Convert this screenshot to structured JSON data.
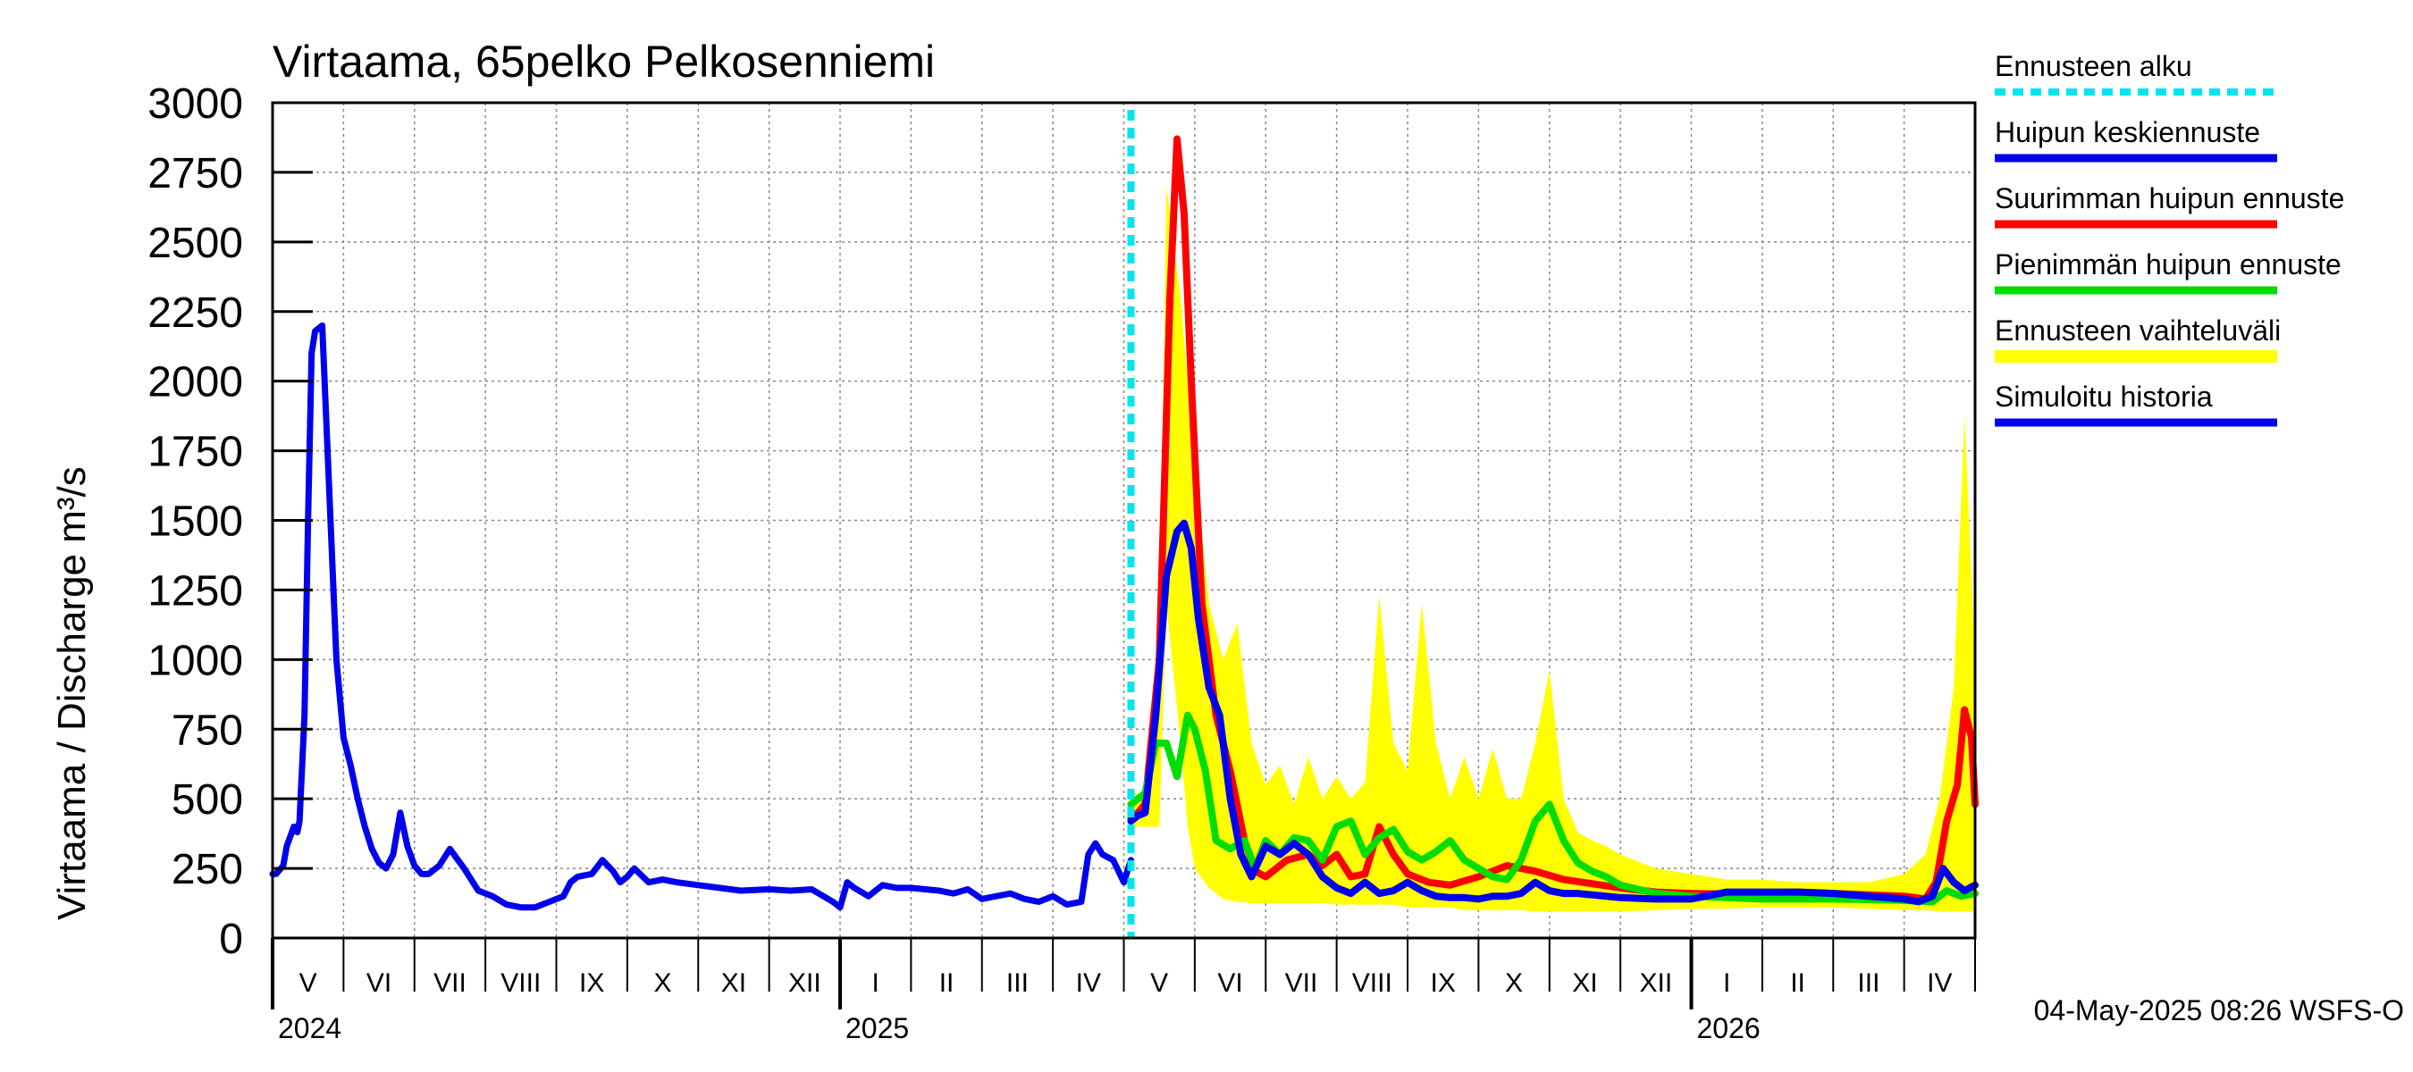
{
  "chart_data": {
    "type": "line",
    "title": "Virtaama, 65pelko Pelkosenniemi",
    "ylabel": "Virtaama / Discharge    m³/s",
    "y_ticks": [
      "3000",
      "2750",
      "2500",
      "2250",
      "2000",
      "1750",
      "1500",
      "1250",
      "1000",
      "750",
      "500",
      "250",
      "0"
    ],
    "ylim": [
      0,
      3000
    ],
    "x_unit": "months since 2024-05-01",
    "xlim": [
      0,
      24.0
    ],
    "forecast_start": 12.1,
    "month_labels": [
      "V",
      "VI",
      "VII",
      "VIII",
      "IX",
      "X",
      "XI",
      "XII",
      "I",
      "II",
      "III",
      "IV",
      "V",
      "VI",
      "VII",
      "VIII",
      "IX",
      "X",
      "XI",
      "XII",
      "I",
      "II",
      "III",
      "IV"
    ],
    "year_labels": [
      "2024",
      "2025",
      "2026"
    ],
    "legend": [
      {
        "label": "Ennusteen alku",
        "color": "#00e5ee",
        "style": "dashed"
      },
      {
        "label": "Huipun keskiennuste",
        "color": "#0000ee",
        "style": "solid"
      },
      {
        "label": "Suurimman huipun ennuste",
        "color": "#ff0000",
        "style": "solid"
      },
      {
        "label": "Pienimmän huipun ennuste",
        "color": "#00dd00",
        "style": "solid"
      },
      {
        "label": "Ennusteen vaihteluväli",
        "color": "#ffff00",
        "style": "band"
      },
      {
        "label": "Simuloitu historia",
        "color": "#0000ee",
        "style": "solid"
      }
    ],
    "footer": "04-May-2025 08:26 WSFS-O",
    "range_band": {
      "name": "Ennusteen vaihteluväli",
      "x": [
        12.1,
        12.3,
        12.5,
        12.6,
        12.8,
        12.9,
        13.0,
        13.2,
        13.4,
        13.6,
        13.8,
        14.0,
        14.2,
        14.4,
        14.6,
        14.8,
        15.0,
        15.2,
        15.4,
        15.6,
        15.8,
        16.0,
        16.2,
        16.4,
        16.6,
        16.8,
        17.0,
        17.2,
        17.4,
        17.6,
        17.8,
        18.0,
        18.2,
        18.4,
        18.6,
        18.8,
        19.0,
        19.5,
        20.0,
        20.5,
        21.0,
        21.5,
        22.0,
        22.5,
        23.0,
        23.3,
        23.5,
        23.7,
        23.85,
        24.0
      ],
      "upper": [
        520,
        520,
        1000,
        2700,
        2300,
        2000,
        1700,
        1200,
        1000,
        1130,
        700,
        550,
        620,
        480,
        650,
        500,
        580,
        500,
        560,
        1230,
        700,
        600,
        1200,
        700,
        500,
        650,
        500,
        680,
        500,
        500,
        700,
        960,
        500,
        380,
        350,
        330,
        300,
        250,
        230,
        210,
        210,
        200,
        200,
        200,
        230,
        300,
        500,
        900,
        1880,
        1000
      ],
      "lower": [
        400,
        400,
        400,
        1200,
        700,
        400,
        250,
        180,
        140,
        130,
        125,
        125,
        125,
        125,
        125,
        125,
        120,
        120,
        120,
        120,
        120,
        110,
        110,
        110,
        110,
        100,
        100,
        100,
        100,
        100,
        95,
        95,
        95,
        95,
        95,
        95,
        95,
        100,
        105,
        105,
        110,
        110,
        110,
        105,
        100,
        100,
        95,
        95,
        95,
        95
      ]
    },
    "series": [
      {
        "name": "Simuloitu historia",
        "color": "#0000ee",
        "x": [
          0.0,
          0.05,
          0.15,
          0.2,
          0.3,
          0.35,
          0.38,
          0.45,
          0.5,
          0.55,
          0.6,
          0.7,
          0.8,
          0.9,
          1.0,
          1.1,
          1.2,
          1.3,
          1.4,
          1.5,
          1.6,
          1.7,
          1.8,
          1.9,
          2.0,
          2.1,
          2.2,
          2.35,
          2.5,
          2.7,
          2.9,
          3.1,
          3.3,
          3.5,
          3.7,
          3.9,
          4.1,
          4.2,
          4.3,
          4.5,
          4.65,
          4.8,
          4.9,
          5.0,
          5.1,
          5.3,
          5.5,
          5.7,
          6.0,
          6.3,
          6.6,
          7.0,
          7.3,
          7.6,
          7.9,
          8.0,
          8.1,
          8.2,
          8.4,
          8.6,
          8.8,
          9.0,
          9.2,
          9.4,
          9.6,
          9.8,
          10.0,
          10.2,
          10.4,
          10.6,
          10.8,
          11.0,
          11.2,
          11.4,
          11.5,
          11.6,
          11.7,
          11.85,
          12.0,
          12.1
        ],
        "y": [
          230,
          230,
          260,
          330,
          400,
          380,
          420,
          800,
          1500,
          2100,
          2180,
          2200,
          1600,
          1000,
          720,
          620,
          500,
          400,
          320,
          270,
          250,
          300,
          450,
          330,
          260,
          230,
          230,
          260,
          320,
          250,
          170,
          150,
          120,
          110,
          110,
          130,
          150,
          200,
          220,
          230,
          280,
          240,
          200,
          220,
          250,
          200,
          210,
          200,
          190,
          180,
          170,
          175,
          170,
          175,
          130,
          110,
          200,
          180,
          150,
          190,
          180,
          180,
          175,
          170,
          160,
          175,
          140,
          150,
          160,
          140,
          130,
          150,
          120,
          130,
          300,
          340,
          300,
          280,
          200,
          280
        ]
      },
      {
        "name": "Suurimman huipun ennuste",
        "color": "#ff0000",
        "x": [
          12.1,
          12.2,
          12.3,
          12.5,
          12.65,
          12.75,
          12.85,
          12.95,
          13.1,
          13.3,
          13.5,
          13.7,
          13.85,
          14.0,
          14.3,
          14.6,
          14.8,
          15.0,
          15.2,
          15.4,
          15.6,
          15.8,
          16.0,
          16.3,
          16.6,
          17.0,
          17.4,
          17.8,
          18.2,
          18.6,
          19.0,
          19.5,
          20.0,
          20.5,
          21.0,
          21.5,
          22.0,
          22.5,
          23.0,
          23.3,
          23.45,
          23.6,
          23.75,
          23.85,
          23.95,
          24.0
        ],
        "y": [
          430,
          450,
          480,
          1000,
          2300,
          2870,
          2600,
          2000,
          1200,
          800,
          600,
          350,
          240,
          220,
          280,
          300,
          260,
          300,
          220,
          230,
          400,
          300,
          230,
          200,
          190,
          220,
          260,
          240,
          210,
          195,
          180,
          165,
          160,
          158,
          160,
          165,
          160,
          155,
          150,
          140,
          200,
          420,
          550,
          820,
          720,
          480
        ]
      },
      {
        "name": "Pienimmän huipun ennuste",
        "color": "#00dd00",
        "x": [
          12.1,
          12.3,
          12.45,
          12.6,
          12.75,
          12.9,
          13.0,
          13.15,
          13.3,
          13.5,
          13.7,
          13.85,
          14.0,
          14.2,
          14.4,
          14.6,
          14.8,
          15.0,
          15.2,
          15.4,
          15.6,
          15.8,
          16.0,
          16.2,
          16.4,
          16.6,
          16.8,
          17.0,
          17.2,
          17.4,
          17.6,
          17.8,
          18.0,
          18.2,
          18.4,
          18.6,
          18.8,
          19.0,
          19.5,
          20.0,
          20.5,
          21.0,
          21.5,
          22.0,
          22.5,
          23.0,
          23.4,
          23.6,
          23.8,
          24.0
        ],
        "y": [
          480,
          520,
          700,
          700,
          580,
          800,
          750,
          600,
          350,
          320,
          350,
          250,
          350,
          300,
          360,
          350,
          280,
          400,
          420,
          300,
          360,
          390,
          310,
          280,
          310,
          350,
          280,
          250,
          220,
          210,
          280,
          420,
          480,
          350,
          270,
          240,
          220,
          190,
          160,
          150,
          145,
          140,
          140,
          140,
          138,
          135,
          130,
          170,
          150,
          160
        ]
      },
      {
        "name": "Huipun keskiennuste",
        "color": "#0000ee",
        "x": [
          12.1,
          12.2,
          12.3,
          12.45,
          12.6,
          12.75,
          12.85,
          12.95,
          13.05,
          13.2,
          13.35,
          13.5,
          13.65,
          13.8,
          14.0,
          14.2,
          14.4,
          14.6,
          14.8,
          15.0,
          15.2,
          15.4,
          15.6,
          15.8,
          16.0,
          16.2,
          16.4,
          16.6,
          16.8,
          17.0,
          17.2,
          17.4,
          17.6,
          17.8,
          18.0,
          18.2,
          18.4,
          18.6,
          18.8,
          19.0,
          19.5,
          20.0,
          20.5,
          21.0,
          21.5,
          22.0,
          22.5,
          23.0,
          23.2,
          23.4,
          23.55,
          23.7,
          23.85,
          24.0
        ],
        "y": [
          420,
          440,
          450,
          800,
          1300,
          1460,
          1490,
          1400,
          1150,
          900,
          800,
          500,
          300,
          220,
          330,
          300,
          340,
          300,
          220,
          180,
          160,
          200,
          160,
          170,
          200,
          170,
          150,
          145,
          145,
          140,
          150,
          150,
          160,
          200,
          170,
          160,
          160,
          155,
          150,
          145,
          140,
          140,
          165,
          165,
          165,
          160,
          150,
          140,
          130,
          150,
          250,
          200,
          170,
          190
        ]
      }
    ]
  }
}
